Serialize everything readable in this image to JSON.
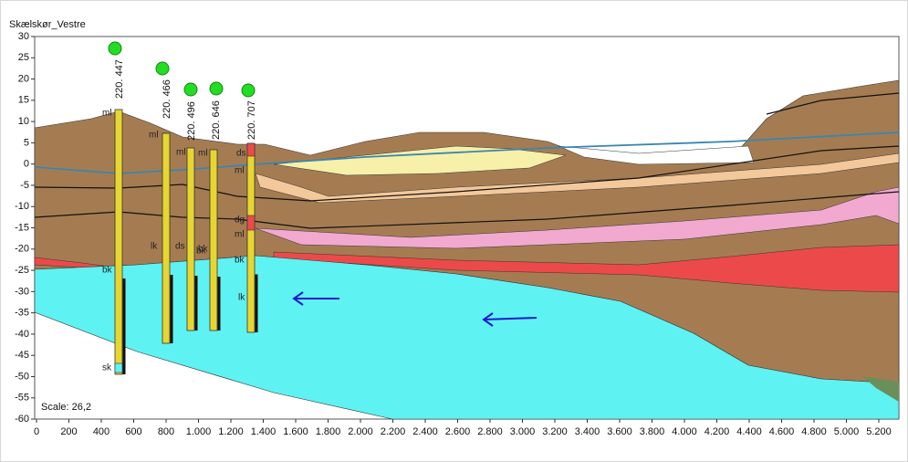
{
  "title": "Skælskør_Vestre",
  "scale_label": "Scale: 26,2",
  "x_axis": {
    "ticks": [
      "0",
      "200",
      "400",
      "600",
      "800",
      "1.000",
      "1.200",
      "1.400",
      "1.600",
      "1.800",
      "2.000",
      "2.200",
      "2.400",
      "2.600",
      "2.800",
      "3.000",
      "3.200",
      "3.400",
      "3.600",
      "3.800",
      "4.000",
      "4.200",
      "4.400",
      "4.600",
      "4.800",
      "5.000",
      "5.200"
    ]
  },
  "y_axis": {
    "ticks": [
      "30",
      "25",
      "20",
      "15",
      "10",
      "5",
      "0",
      "-5",
      "-10",
      "-15",
      "-20",
      "-25",
      "-30",
      "-35",
      "-40",
      "-45",
      "-50",
      "-55",
      "-60"
    ]
  },
  "boreholes": [
    {
      "id": "220. 447",
      "labels": [
        "ml",
        "bk",
        "sk"
      ]
    },
    {
      "id": "220. 466",
      "labels": [
        "ml",
        "lk"
      ]
    },
    {
      "id": "220. 496",
      "labels": [
        "ml",
        "ds",
        "bk"
      ]
    },
    {
      "id": "220. 646",
      "labels": [
        "ml",
        "bk"
      ]
    },
    {
      "id": "220. 707",
      "labels": [
        "ds",
        "ml",
        "dg",
        "ml",
        "bk",
        "lk"
      ]
    }
  ]
}
